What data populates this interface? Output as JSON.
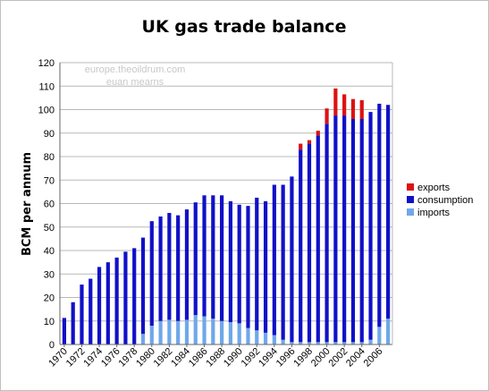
{
  "chart_data": {
    "type": "bar",
    "stacked": true,
    "title": "UK gas trade balance",
    "xlabel": "",
    "ylabel": "BCM per annum",
    "ylim": [
      0,
      120
    ],
    "yticks": [
      0,
      10,
      20,
      30,
      40,
      50,
      60,
      70,
      80,
      90,
      100,
      110,
      120
    ],
    "x_tick_labels": [
      "1970",
      "1972",
      "1974",
      "1976",
      "1978",
      "1980",
      "1982",
      "1984",
      "1986",
      "1988",
      "1990",
      "1992",
      "1994",
      "1996",
      "1998",
      "2000",
      "2002",
      "2004",
      "2006"
    ],
    "grid": true,
    "legend_position": "right",
    "watermark": [
      "europe.theoildrum.com",
      "euan mearns"
    ],
    "colors": {
      "exports": "#dd1111",
      "consumption": "#1010c8",
      "imports": "#6fa8ea",
      "grid": "#b8b8b8",
      "axis": "#666666"
    },
    "categories": [
      1970,
      1971,
      1972,
      1973,
      1974,
      1975,
      1976,
      1977,
      1978,
      1979,
      1980,
      1981,
      1982,
      1983,
      1984,
      1985,
      1986,
      1987,
      1988,
      1989,
      1990,
      1991,
      1992,
      1993,
      1994,
      1995,
      1996,
      1997,
      1998,
      1999,
      2000,
      2001,
      2002,
      2003,
      2004,
      2005,
      2006,
      2007
    ],
    "series": [
      {
        "name": "imports",
        "values": [
          0,
          0,
          0,
          0,
          0,
          0,
          0,
          0,
          0,
          4.5,
          8,
          10,
          10.5,
          10,
          10.5,
          12.5,
          12,
          11,
          10,
          9.5,
          9,
          7,
          6,
          5,
          4,
          2,
          1,
          1,
          1,
          1,
          1,
          1,
          1,
          1,
          1,
          2,
          7.5,
          11
        ]
      },
      {
        "name": "consumption",
        "values": [
          11.3,
          18,
          25.5,
          28,
          33,
          35,
          37,
          39.5,
          41,
          41,
          44.5,
          44.5,
          45.5,
          45,
          47,
          48,
          51.5,
          52.5,
          53.5,
          51.5,
          50.5,
          52,
          56.5,
          56,
          64,
          66,
          70.5,
          82,
          84.5,
          88,
          93,
          96.5,
          96.5,
          95,
          95,
          97,
          95,
          91
        ]
      },
      {
        "name": "exports",
        "values": [
          0,
          0,
          0,
          0,
          0,
          0,
          0,
          0,
          0,
          0,
          0,
          0,
          0,
          0,
          0,
          0,
          0,
          0,
          0,
          0,
          0,
          0,
          0,
          0,
          0,
          0,
          0,
          2.5,
          1.5,
          2,
          6.5,
          11.5,
          9,
          8.5,
          8,
          0,
          0,
          0
        ]
      }
    ]
  }
}
